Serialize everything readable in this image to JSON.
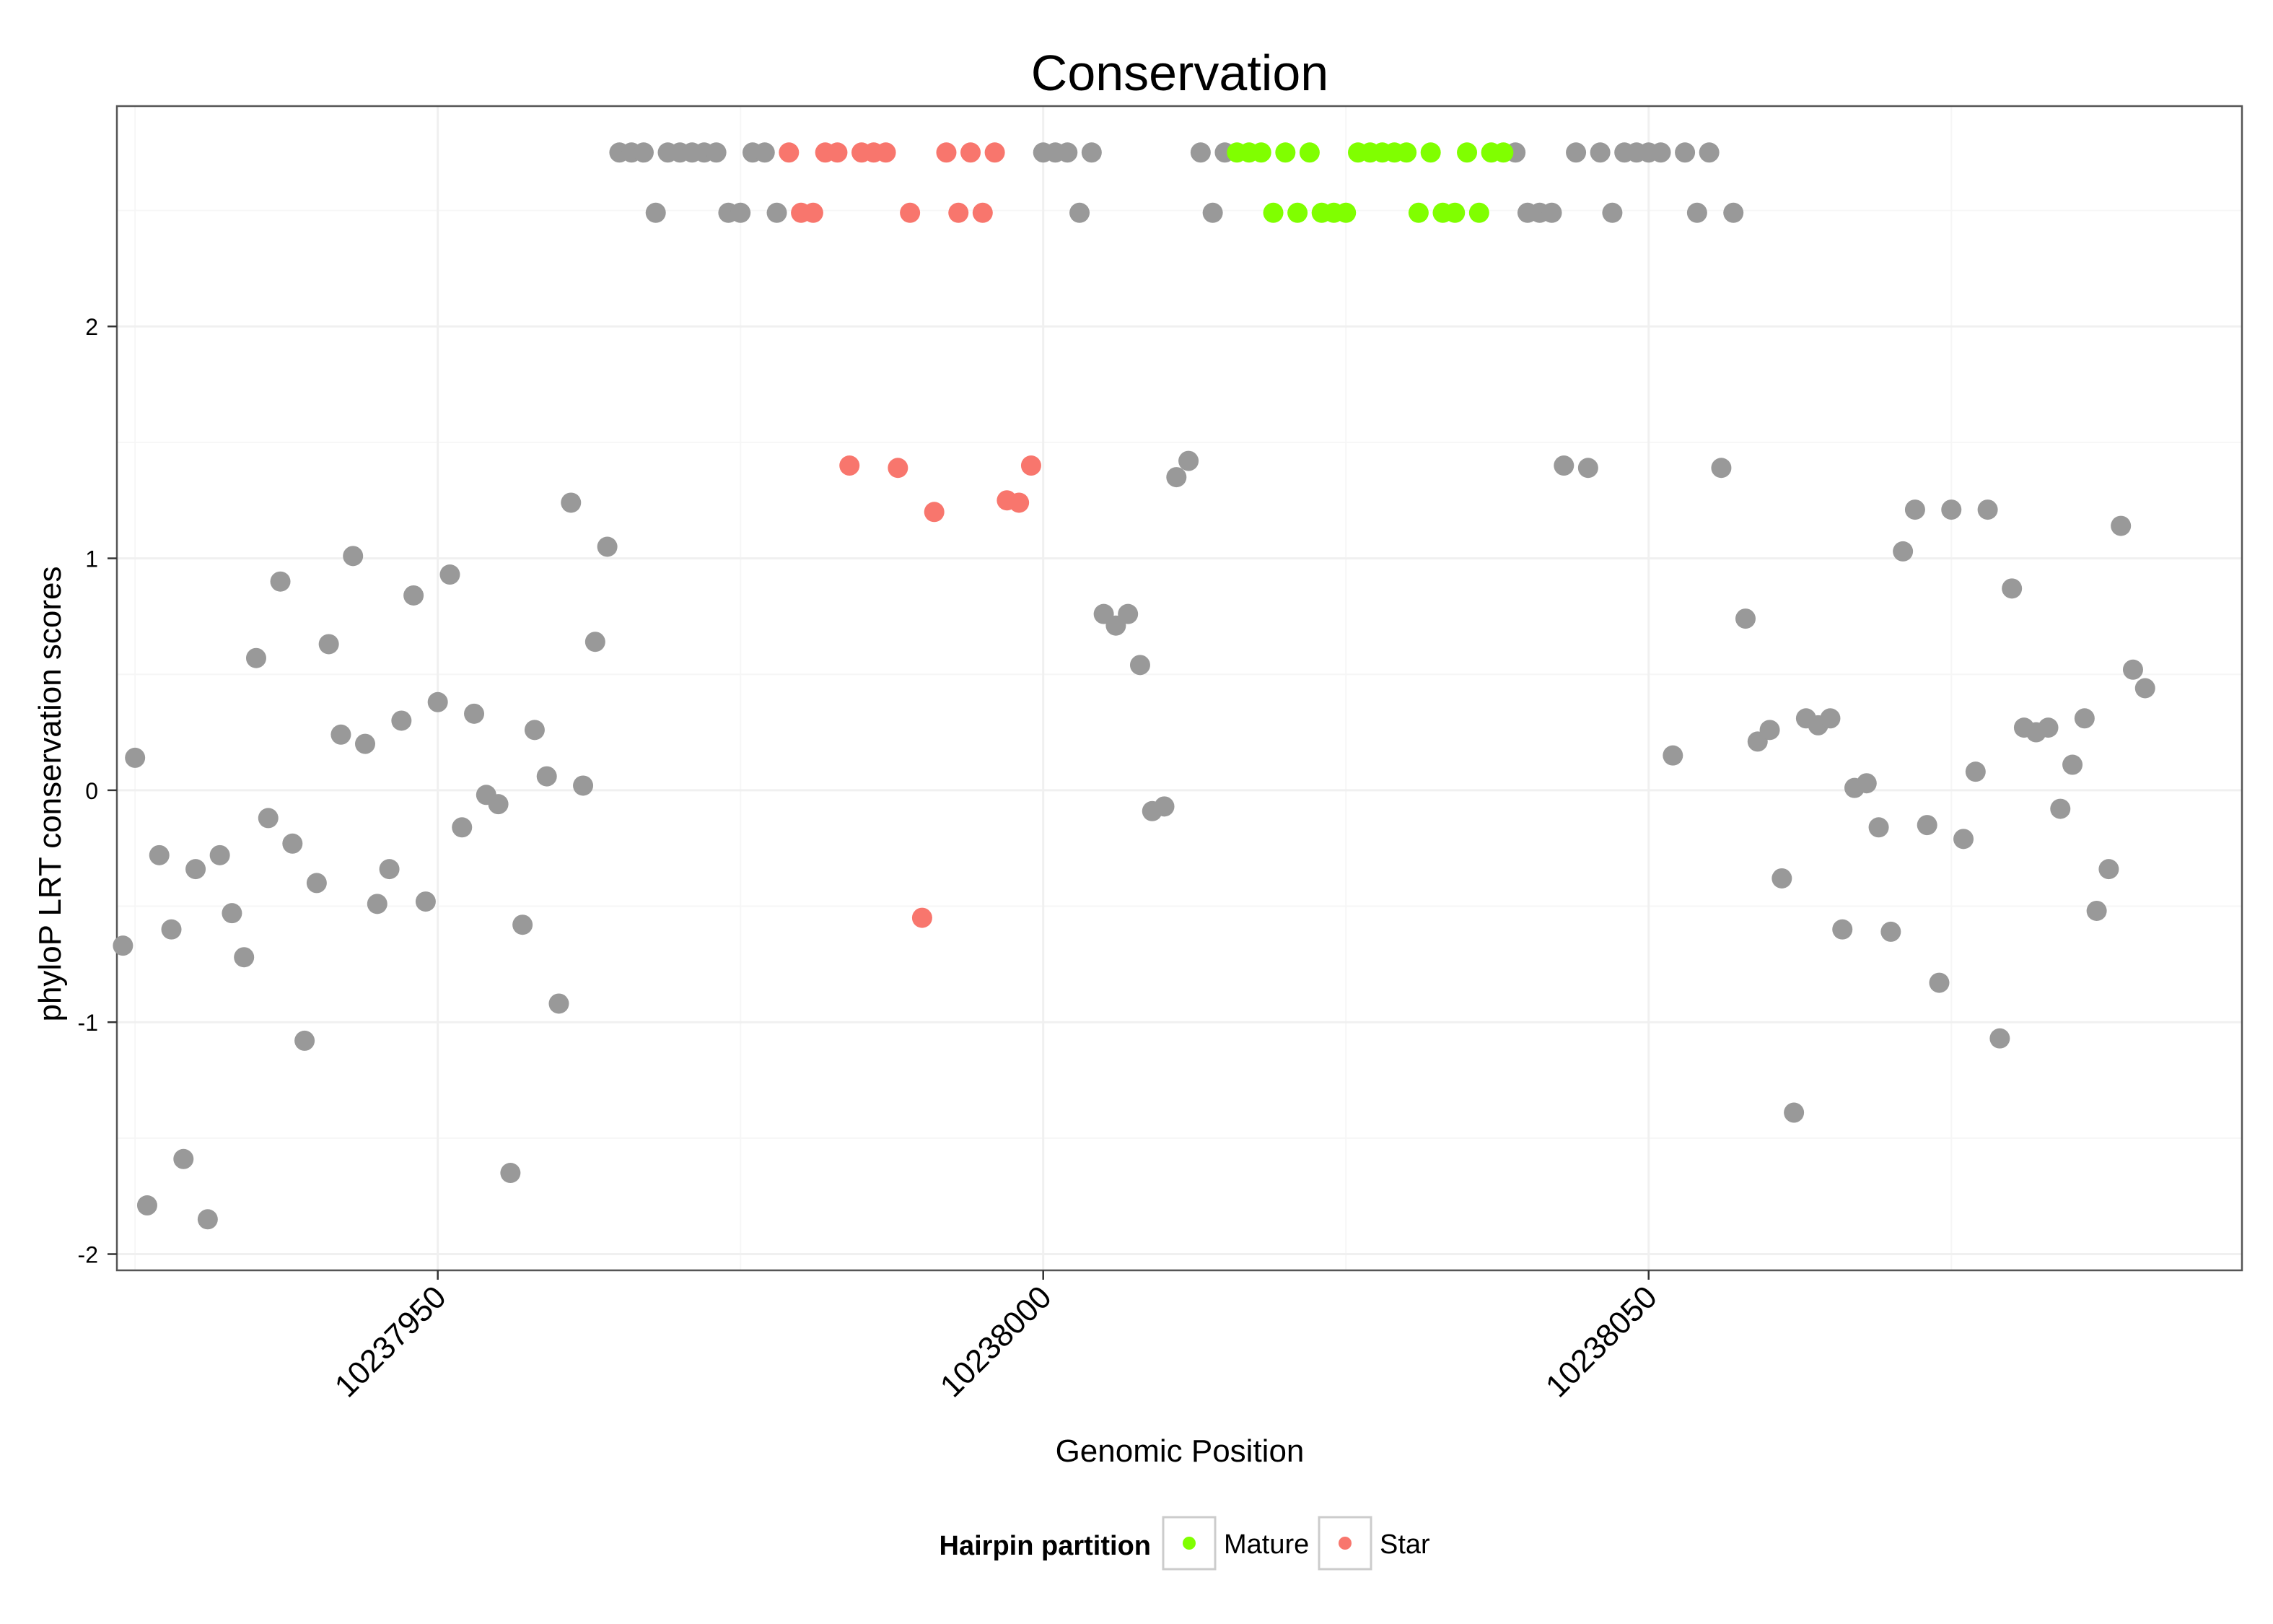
{
  "chart_data": {
    "type": "scatter",
    "title": "Conservation",
    "xlabel": "Genomic Position",
    "ylabel": "phyloP LRT conservation scores",
    "xlim": [
      10237923.5,
      10238099
    ],
    "ylim": [
      -2.07,
      2.95
    ],
    "x_ticks": [
      10237950,
      10238000,
      10238050
    ],
    "x_tick_labels": [
      "10237950",
      "10238000",
      "10238050"
    ],
    "y_ticks": [
      -2,
      -1,
      0,
      1,
      2
    ],
    "y_tick_labels": [
      "-2",
      "-1",
      "0",
      "1",
      "2"
    ],
    "grid": true,
    "legend": {
      "title": "Hairpin partition",
      "position": "bottom",
      "entries": [
        {
          "label": "Mature",
          "color": "#80FF00"
        },
        {
          "label": "Star",
          "color": "#F8766D"
        }
      ]
    },
    "colors": {
      "Other": "#999999",
      "Mature": "#80FF00",
      "Star": "#F8766D"
    },
    "series": [
      {
        "name": "Other",
        "color": "#999999",
        "points": [
          [
            10237924,
            -0.67
          ],
          [
            10237925,
            0.14
          ],
          [
            10237926,
            -1.79
          ],
          [
            10237927,
            -0.28
          ],
          [
            10237928,
            -0.6
          ],
          [
            10237929,
            -1.59
          ],
          [
            10237930,
            -0.34
          ],
          [
            10237931,
            -1.85
          ],
          [
            10237932,
            -0.28
          ],
          [
            10237933,
            -0.53
          ],
          [
            10237934,
            -0.72
          ],
          [
            10237935,
            0.57
          ],
          [
            10237936,
            -0.12
          ],
          [
            10237937,
            0.9
          ],
          [
            10237938,
            -0.23
          ],
          [
            10237939,
            -1.08
          ],
          [
            10237940,
            -0.4
          ],
          [
            10237941,
            0.63
          ],
          [
            10237942,
            0.24
          ],
          [
            10237943,
            1.01
          ],
          [
            10237944,
            0.2
          ],
          [
            10237945,
            -0.49
          ],
          [
            10237946,
            -0.34
          ],
          [
            10237947,
            0.3
          ],
          [
            10237948,
            0.84
          ],
          [
            10237949,
            -0.48
          ],
          [
            10237950,
            0.38
          ],
          [
            10237951,
            0.93
          ],
          [
            10237952,
            -0.16
          ],
          [
            10237953,
            0.33
          ],
          [
            10237954,
            -0.02
          ],
          [
            10237955,
            -0.06
          ],
          [
            10237956,
            -1.65
          ],
          [
            10237957,
            -0.58
          ],
          [
            10237958,
            0.26
          ],
          [
            10237959,
            0.06
          ],
          [
            10237960,
            -0.92
          ],
          [
            10237961,
            1.24
          ],
          [
            10237962,
            0.02
          ],
          [
            10237963,
            0.64
          ],
          [
            10237964,
            1.05
          ],
          [
            10237965,
            2.75
          ],
          [
            10237966,
            2.75
          ],
          [
            10237967,
            2.75
          ],
          [
            10237968,
            2.49
          ],
          [
            10237969,
            2.75
          ],
          [
            10237970,
            2.75
          ],
          [
            10237971,
            2.75
          ],
          [
            10237972,
            2.75
          ],
          [
            10237973,
            2.75
          ],
          [
            10237974,
            2.49
          ],
          [
            10237975,
            2.49
          ],
          [
            10237976,
            2.75
          ],
          [
            10237977,
            2.75
          ],
          [
            10237978,
            2.49
          ],
          [
            10238000,
            2.75
          ],
          [
            10238001,
            2.75
          ],
          [
            10238002,
            2.75
          ],
          [
            10238003,
            2.49
          ],
          [
            10238004,
            2.75
          ],
          [
            10238005,
            0.76
          ],
          [
            10238006,
            0.71
          ],
          [
            10238007,
            0.76
          ],
          [
            10238008,
            0.54
          ],
          [
            10238009,
            -0.09
          ],
          [
            10238010,
            -0.07
          ],
          [
            10238011,
            1.35
          ],
          [
            10238012,
            1.42
          ],
          [
            10238013,
            2.75
          ],
          [
            10238014,
            2.49
          ],
          [
            10238015,
            2.75
          ],
          [
            10238039,
            2.75
          ],
          [
            10238040,
            2.49
          ],
          [
            10238041,
            2.49
          ],
          [
            10238042,
            2.49
          ],
          [
            10238043,
            1.4
          ],
          [
            10238044,
            2.75
          ],
          [
            10238045,
            1.39
          ],
          [
            10238046,
            2.75
          ],
          [
            10238047,
            2.49
          ],
          [
            10238048,
            2.75
          ],
          [
            10238049,
            2.75
          ],
          [
            10238050,
            2.75
          ],
          [
            10238051,
            2.75
          ],
          [
            10238052,
            0.15
          ],
          [
            10238053,
            2.75
          ],
          [
            10238054,
            2.49
          ],
          [
            10238055,
            2.75
          ],
          [
            10238056,
            1.39
          ],
          [
            10238057,
            2.49
          ],
          [
            10238058,
            0.74
          ],
          [
            10238059,
            0.21
          ],
          [
            10238060,
            0.26
          ],
          [
            10238061,
            -0.38
          ],
          [
            10238062,
            -1.39
          ],
          [
            10238063,
            0.31
          ],
          [
            10238064,
            0.28
          ],
          [
            10238065,
            0.31
          ],
          [
            10238066,
            -0.6
          ],
          [
            10238067,
            0.01
          ],
          [
            10238068,
            0.03
          ],
          [
            10238069,
            -0.16
          ],
          [
            10238070,
            -0.61
          ],
          [
            10238071,
            1.03
          ],
          [
            10238072,
            1.21
          ],
          [
            10238073,
            -0.15
          ],
          [
            10238074,
            -0.83
          ],
          [
            10238075,
            1.21
          ],
          [
            10238076,
            -0.21
          ],
          [
            10238077,
            0.08
          ],
          [
            10238078,
            1.21
          ],
          [
            10238079,
            -1.07
          ],
          [
            10238080,
            0.87
          ],
          [
            10238081,
            0.27
          ],
          [
            10238082,
            0.25
          ],
          [
            10238083,
            0.27
          ],
          [
            10238084,
            -0.08
          ],
          [
            10238085,
            0.11
          ],
          [
            10238086,
            0.31
          ],
          [
            10238087,
            -0.52
          ],
          [
            10238088,
            -0.34
          ],
          [
            10238089,
            1.14
          ],
          [
            10238090,
            0.52
          ],
          [
            10238091,
            0.44
          ]
        ]
      },
      {
        "name": "Star",
        "color": "#F8766D",
        "points": [
          [
            10237979,
            2.75
          ],
          [
            10237980,
            2.49
          ],
          [
            10237981,
            2.49
          ],
          [
            10237982,
            2.75
          ],
          [
            10237983,
            2.75
          ],
          [
            10237984,
            1.4
          ],
          [
            10237985,
            2.75
          ],
          [
            10237986,
            2.75
          ],
          [
            10237987,
            2.75
          ],
          [
            10237988,
            1.39
          ],
          [
            10237989,
            2.49
          ],
          [
            10237990,
            -0.55
          ],
          [
            10237991,
            1.2
          ],
          [
            10237992,
            2.75
          ],
          [
            10237993,
            2.49
          ],
          [
            10237994,
            2.75
          ],
          [
            10237995,
            2.49
          ],
          [
            10237996,
            2.75
          ],
          [
            10237997,
            1.25
          ],
          [
            10237998,
            1.24
          ],
          [
            10237999,
            1.4
          ]
        ]
      },
      {
        "name": "Mature",
        "color": "#80FF00",
        "points": [
          [
            10238016,
            2.75
          ],
          [
            10238017,
            2.75
          ],
          [
            10238018,
            2.75
          ],
          [
            10238019,
            2.49
          ],
          [
            10238020,
            2.75
          ],
          [
            10238021,
            2.49
          ],
          [
            10238022,
            2.75
          ],
          [
            10238023,
            2.49
          ],
          [
            10238024,
            2.49
          ],
          [
            10238025,
            2.49
          ],
          [
            10238026,
            2.75
          ],
          [
            10238027,
            2.75
          ],
          [
            10238028,
            2.75
          ],
          [
            10238029,
            2.75
          ],
          [
            10238030,
            2.75
          ],
          [
            10238031,
            2.49
          ],
          [
            10238032,
            2.75
          ],
          [
            10238033,
            2.49
          ],
          [
            10238034,
            2.49
          ],
          [
            10238035,
            2.75
          ],
          [
            10238036,
            2.49
          ],
          [
            10238037,
            2.75
          ],
          [
            10238038,
            2.75
          ]
        ]
      }
    ]
  }
}
